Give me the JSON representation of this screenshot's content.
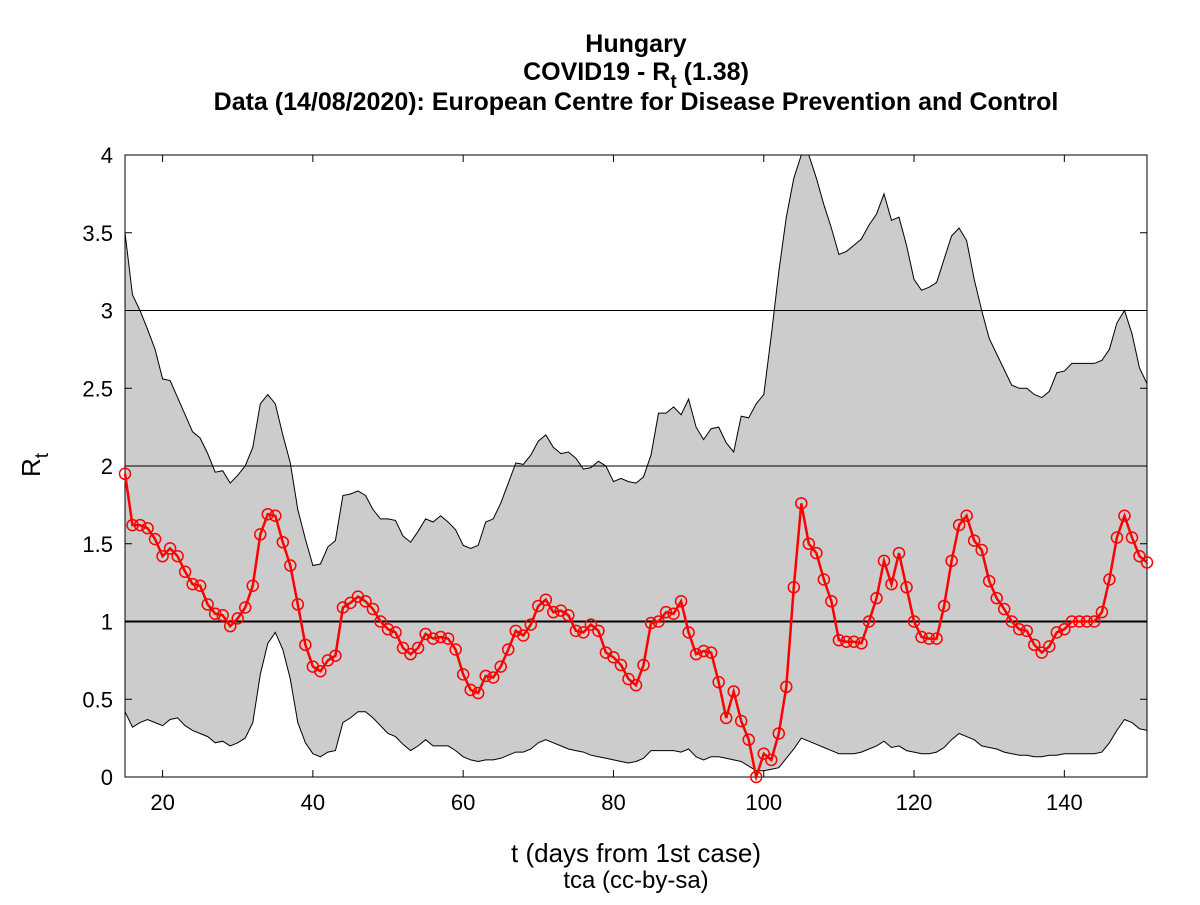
{
  "chart_data": {
    "type": "line",
    "title": "Hungary",
    "subtitle_prefix": "COVID19 - R",
    "subtitle_sub": "t",
    "subtitle_suffix": " (1.38)",
    "source": "Data (14/08/2020): European Centre for Disease Prevention and Control",
    "xlabel": "t (days from 1st case)",
    "ylabel_main": "R",
    "ylabel_sub": "t",
    "credit": "tca (cc-by-sa)",
    "xlim": [
      15,
      151
    ],
    "ylim": [
      0,
      4
    ],
    "x_ticks": [
      20,
      40,
      60,
      80,
      100,
      120,
      140
    ],
    "y_ticks": [
      0,
      0.5,
      1,
      1.5,
      2,
      2.5,
      3,
      3.5,
      4
    ],
    "x_tick_labels": [
      "20",
      "40",
      "60",
      "80",
      "100",
      "120",
      "140"
    ],
    "y_tick_labels": [
      "0",
      "0.5",
      "1",
      "1.5",
      "2",
      "2.5",
      "3",
      "3.5",
      "4"
    ],
    "reference_lines": [
      1,
      2,
      3
    ],
    "colors": {
      "series": "#ff0000",
      "band": "#cccccc",
      "band_edge": "#000000",
      "reference": "#000000"
    },
    "band_upper": {
      "x": [
        15,
        16,
        17,
        18,
        19,
        20,
        21,
        22,
        23,
        24,
        25,
        26,
        27,
        28,
        29,
        30,
        31,
        32,
        33,
        34,
        35,
        36,
        37,
        38,
        39,
        40,
        41,
        42,
        43,
        44,
        45,
        46,
        47,
        48,
        49,
        50,
        51,
        52,
        53,
        54,
        55,
        56,
        57,
        58,
        59,
        60,
        61,
        62,
        63,
        64,
        65,
        66,
        67,
        68,
        69,
        70,
        71,
        72,
        73,
        74,
        75,
        76,
        77,
        78,
        79,
        80,
        81,
        82,
        83,
        84,
        85,
        86,
        87,
        88,
        89,
        90,
        91,
        92,
        93,
        94,
        95,
        96,
        97,
        98,
        99,
        100,
        101,
        102,
        103,
        104,
        105,
        106,
        107,
        108,
        109,
        110,
        111,
        112,
        113,
        114,
        115,
        116,
        117,
        118,
        119,
        120,
        121,
        122,
        123,
        124,
        125,
        126,
        127,
        128,
        129,
        130,
        131,
        132,
        133,
        134,
        135,
        136,
        137,
        138,
        139,
        140,
        141,
        142,
        143,
        144,
        145,
        146,
        147,
        148,
        149,
        150,
        151
      ],
      "y": [
        3.5,
        3.1,
        3.0,
        2.88,
        2.75,
        2.56,
        2.55,
        2.44,
        2.33,
        2.22,
        2.18,
        2.08,
        1.96,
        1.97,
        1.89,
        1.94,
        2.0,
        2.12,
        2.4,
        2.46,
        2.4,
        2.2,
        2.02,
        1.72,
        1.53,
        1.36,
        1.37,
        1.48,
        1.52,
        1.81,
        1.82,
        1.84,
        1.81,
        1.72,
        1.66,
        1.66,
        1.65,
        1.55,
        1.51,
        1.58,
        1.66,
        1.64,
        1.68,
        1.64,
        1.59,
        1.49,
        1.47,
        1.49,
        1.64,
        1.66,
        1.76,
        1.89,
        2.02,
        2.01,
        2.07,
        2.16,
        2.2,
        2.12,
        2.08,
        2.09,
        2.05,
        1.98,
        1.99,
        2.03,
        2.0,
        1.9,
        1.92,
        1.9,
        1.89,
        1.93,
        2.07,
        2.34,
        2.34,
        2.38,
        2.33,
        2.43,
        2.25,
        2.17,
        2.24,
        2.25,
        2.15,
        2.09,
        2.32,
        2.31,
        2.4,
        2.46,
        2.84,
        3.25,
        3.6,
        3.85,
        4.05,
        4.0,
        3.85,
        3.68,
        3.53,
        3.36,
        3.38,
        3.42,
        3.46,
        3.55,
        3.62,
        3.75,
        3.58,
        3.6,
        3.42,
        3.2,
        3.13,
        3.15,
        3.18,
        3.33,
        3.48,
        3.53,
        3.45,
        3.2,
        3.0,
        2.82,
        2.72,
        2.62,
        2.52,
        2.5,
        2.5,
        2.46,
        2.44,
        2.48,
        2.6,
        2.61,
        2.66,
        2.66,
        2.66,
        2.66,
        2.68,
        2.75,
        2.92,
        3.0,
        2.85,
        2.63,
        2.53
      ]
    },
    "band_lower": {
      "x": [
        15,
        16,
        17,
        18,
        19,
        20,
        21,
        22,
        23,
        24,
        25,
        26,
        27,
        28,
        29,
        30,
        31,
        32,
        33,
        34,
        35,
        36,
        37,
        38,
        39,
        40,
        41,
        42,
        43,
        44,
        45,
        46,
        47,
        48,
        49,
        50,
        51,
        52,
        53,
        54,
        55,
        56,
        57,
        58,
        59,
        60,
        61,
        62,
        63,
        64,
        65,
        66,
        67,
        68,
        69,
        70,
        71,
        72,
        73,
        74,
        75,
        76,
        77,
        78,
        79,
        80,
        81,
        82,
        83,
        84,
        85,
        86,
        87,
        88,
        89,
        90,
        91,
        92,
        93,
        94,
        95,
        96,
        97,
        98,
        99,
        100,
        101,
        102,
        103,
        104,
        105,
        106,
        107,
        108,
        109,
        110,
        111,
        112,
        113,
        114,
        115,
        116,
        117,
        118,
        119,
        120,
        121,
        122,
        123,
        124,
        125,
        126,
        127,
        128,
        129,
        130,
        131,
        132,
        133,
        134,
        135,
        136,
        137,
        138,
        139,
        140,
        141,
        142,
        143,
        144,
        145,
        146,
        147,
        148,
        149,
        150,
        151
      ],
      "y": [
        0.42,
        0.32,
        0.35,
        0.37,
        0.35,
        0.33,
        0.37,
        0.38,
        0.33,
        0.3,
        0.28,
        0.26,
        0.22,
        0.23,
        0.2,
        0.22,
        0.25,
        0.35,
        0.66,
        0.86,
        0.93,
        0.82,
        0.63,
        0.35,
        0.22,
        0.15,
        0.13,
        0.16,
        0.17,
        0.35,
        0.38,
        0.42,
        0.42,
        0.38,
        0.33,
        0.28,
        0.26,
        0.21,
        0.17,
        0.2,
        0.24,
        0.2,
        0.2,
        0.2,
        0.17,
        0.13,
        0.11,
        0.1,
        0.11,
        0.11,
        0.12,
        0.14,
        0.16,
        0.16,
        0.18,
        0.22,
        0.24,
        0.22,
        0.2,
        0.18,
        0.17,
        0.16,
        0.14,
        0.13,
        0.12,
        0.11,
        0.1,
        0.09,
        0.1,
        0.12,
        0.17,
        0.17,
        0.17,
        0.17,
        0.16,
        0.18,
        0.13,
        0.11,
        0.13,
        0.13,
        0.12,
        0.11,
        0.1,
        0.07,
        0.04,
        0.04,
        0.05,
        0.06,
        0.12,
        0.18,
        0.25,
        0.23,
        0.21,
        0.19,
        0.17,
        0.15,
        0.15,
        0.15,
        0.16,
        0.18,
        0.2,
        0.23,
        0.19,
        0.2,
        0.17,
        0.16,
        0.15,
        0.15,
        0.16,
        0.19,
        0.24,
        0.28,
        0.26,
        0.24,
        0.2,
        0.19,
        0.18,
        0.16,
        0.15,
        0.14,
        0.14,
        0.13,
        0.13,
        0.14,
        0.14,
        0.15,
        0.15,
        0.15,
        0.15,
        0.15,
        0.16,
        0.22,
        0.3,
        0.37,
        0.35,
        0.31,
        0.3
      ]
    },
    "series": [
      {
        "x": [
          15,
          16,
          17,
          18,
          19,
          20,
          21,
          22,
          23,
          24,
          25,
          26,
          27,
          28,
          29,
          30,
          31,
          32,
          33,
          34,
          35,
          36,
          37,
          38,
          39,
          40,
          41,
          42,
          43,
          44,
          45,
          46,
          47,
          48,
          49,
          50,
          51,
          52,
          53,
          54,
          55,
          56,
          57,
          58,
          59,
          60,
          61,
          62,
          63,
          64,
          65,
          66,
          67,
          68,
          69,
          70,
          71,
          72,
          73,
          74,
          75,
          76,
          77,
          78,
          79,
          80,
          81,
          82,
          83,
          84,
          85,
          86,
          87,
          88,
          89,
          90,
          91,
          92,
          93,
          94,
          95,
          96,
          97,
          98,
          99,
          100,
          101,
          102,
          103,
          104,
          105,
          106,
          107,
          108,
          109,
          110,
          111,
          112,
          113,
          114,
          115,
          116,
          117,
          118,
          119,
          120,
          121,
          122,
          123,
          124,
          125,
          126,
          127,
          128,
          129,
          130,
          131,
          132,
          133,
          134,
          135,
          136,
          137,
          138,
          139,
          140,
          141,
          142,
          143,
          144,
          145,
          146,
          147,
          148,
          149,
          150,
          151
        ],
        "values": [
          1.95,
          1.62,
          1.62,
          1.6,
          1.53,
          1.42,
          1.47,
          1.42,
          1.32,
          1.24,
          1.23,
          1.11,
          1.05,
          1.04,
          0.97,
          1.02,
          1.09,
          1.23,
          1.56,
          1.69,
          1.68,
          1.51,
          1.36,
          1.11,
          0.85,
          0.71,
          0.68,
          0.75,
          0.78,
          1.09,
          1.12,
          1.16,
          1.13,
          1.08,
          1.0,
          0.95,
          0.93,
          0.83,
          0.79,
          0.83,
          0.92,
          0.89,
          0.9,
          0.89,
          0.82,
          0.66,
          0.56,
          0.54,
          0.65,
          0.64,
          0.71,
          0.82,
          0.94,
          0.91,
          0.98,
          1.1,
          1.14,
          1.06,
          1.07,
          1.04,
          0.94,
          0.93,
          0.98,
          0.94,
          0.8,
          0.77,
          0.72,
          0.63,
          0.59,
          0.72,
          0.99,
          1.0,
          1.06,
          1.05,
          1.13,
          0.93,
          0.79,
          0.81,
          0.8,
          0.61,
          0.38,
          0.55,
          0.36,
          0.24,
          0.0,
          0.15,
          0.11,
          0.28,
          0.58,
          1.22,
          1.76,
          1.5,
          1.44,
          1.27,
          1.13,
          0.88,
          0.87,
          0.87,
          0.86,
          1.0,
          1.15,
          1.39,
          1.24,
          1.44,
          1.22,
          1.0,
          0.9,
          0.89,
          0.89,
          1.1,
          1.39,
          1.62,
          1.68,
          1.52,
          1.46,
          1.26,
          1.15,
          1.08,
          1.0,
          0.95,
          0.94,
          0.85,
          0.8,
          0.84,
          0.93,
          0.95,
          1.0,
          1.0,
          1.0,
          1.0,
          1.06,
          1.27,
          1.54,
          1.68,
          1.54,
          1.42,
          1.38
        ]
      }
    ]
  }
}
